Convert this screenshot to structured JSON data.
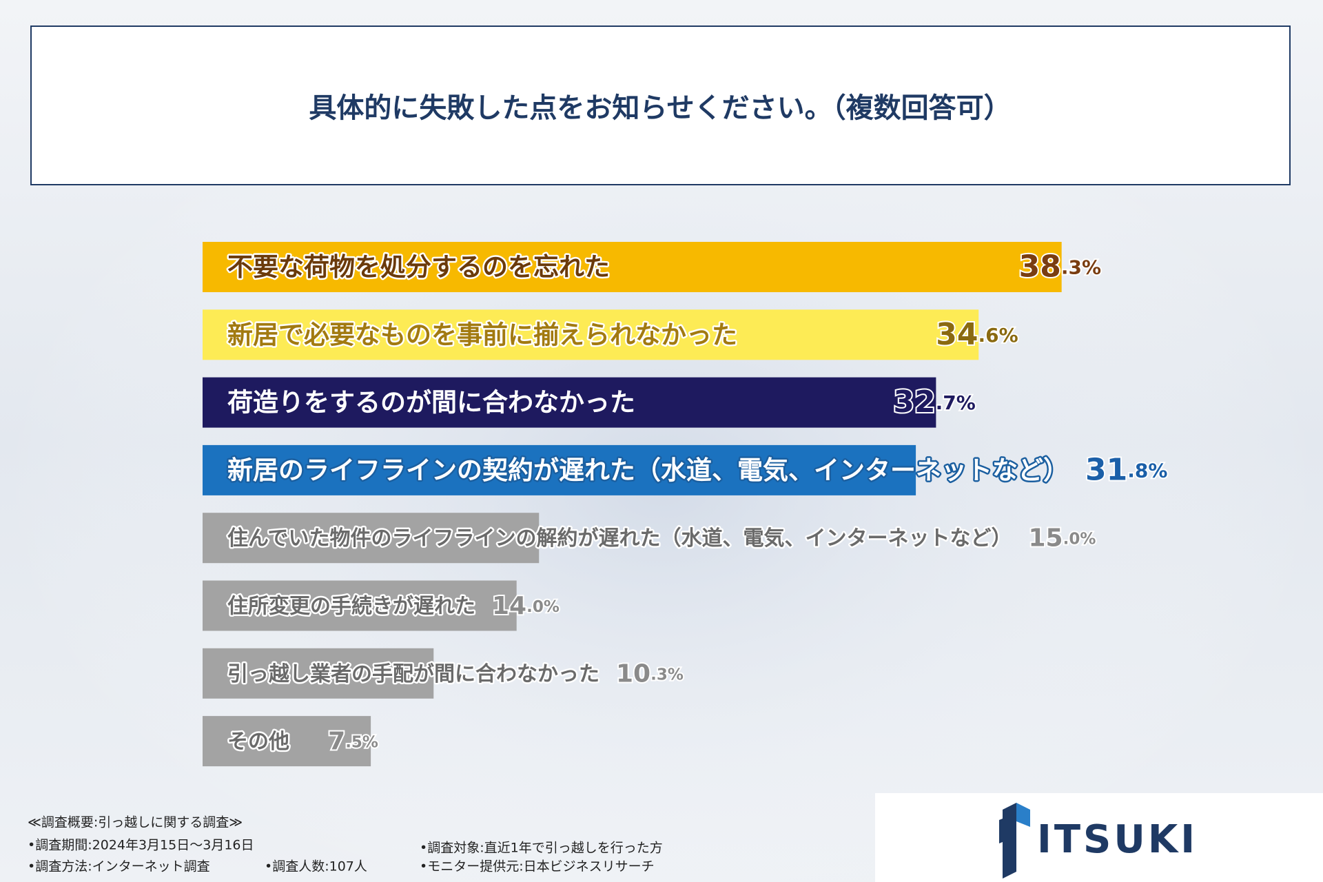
{
  "chart_data": {
    "type": "bar",
    "orientation": "horizontal",
    "title": "具体的に失敗した点をお知らせください。（複数回答可）",
    "categories": [
      "不要な荷物を処分するのを忘れた",
      "新居で必要なものを事前に揃えられなかった",
      "荷造りをするのが間に合わなかった",
      "新居のライフラインの契約が遅れた（水道、電気、インターネットなど）",
      "住んでいた物件のライフラインの解約が遅れた（水道、電気、インターネットなど）",
      "住所変更の手続きが遅れた",
      "引っ越し業者の手配が間に合わなかった",
      "その他"
    ],
    "values": [
      38.3,
      34.6,
      32.7,
      31.8,
      15.0,
      14.0,
      10.3,
      7.5
    ],
    "value_labels": [
      "38.3%",
      "34.6%",
      "32.7%",
      "31.8%",
      "15.0%",
      "14.0%",
      "10.3%",
      "7.5%"
    ],
    "colors": [
      "#f7b900",
      "#fdeb55",
      "#1e1a5f",
      "#1b72bf",
      "#a3a3a3",
      "#a3a3a3",
      "#a3a3a3",
      "#a3a3a3"
    ]
  },
  "footer": {
    "heading": "≪調査概要:引っ越しに関する調査≫",
    "items": [
      "•調査期間:2024年3月15日～3月16日",
      "•調査方法:インターネット調査",
      "•調査人数:107人",
      "•調査対象:直近1年で引っ越しを行った方",
      "•モニター提供元:日本ビジネスリサーチ"
    ]
  },
  "logo": "ITSUKI"
}
